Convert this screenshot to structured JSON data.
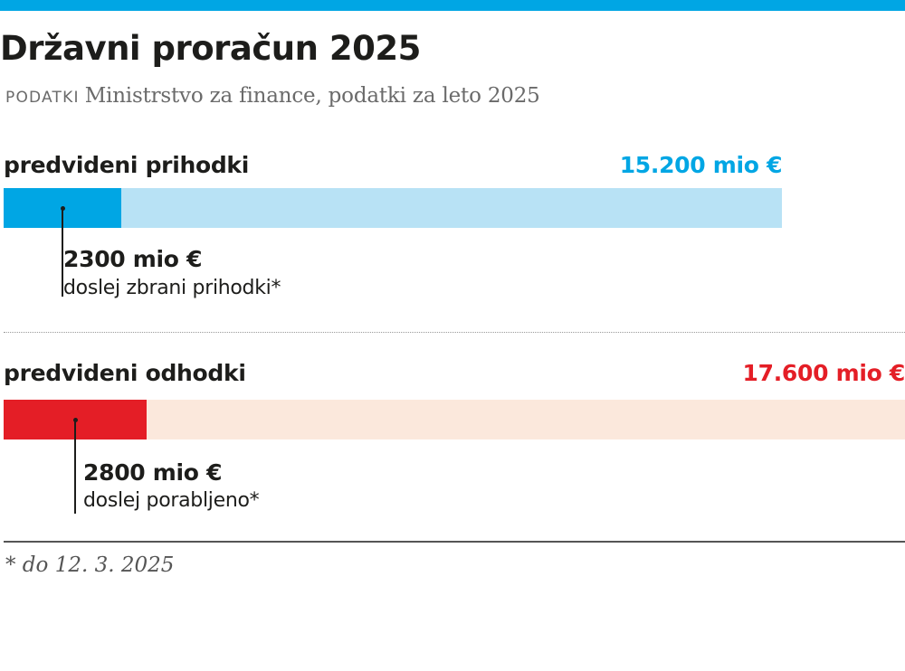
{
  "header": {
    "title": "Državni proračun 2025",
    "source_label": "PODATKI",
    "source_text": "Ministrstvo za finance, podatki za leto 2025"
  },
  "colors": {
    "accent_bar": "#00a6e4",
    "revenue_fill": "#00a6e4",
    "revenue_track": "#b8e2f5",
    "expense_fill": "#e41e26",
    "expense_track": "#fbe8dc",
    "revenue_total_text": "#00a6e4",
    "expense_total_text": "#e41e26"
  },
  "chart_data": {
    "type": "bar",
    "unit": "mio €",
    "max_value": 17600,
    "rows": [
      {
        "label": "predvideni prihodki",
        "total": 15200,
        "total_label": "15.200 mio €",
        "collected": 2300,
        "collected_label": "2300 mio €",
        "collected_desc": "doslej zbrani prihodki*"
      },
      {
        "label": "predvideni odhodki",
        "total": 17600,
        "total_label": "17.600 mio €",
        "collected": 2800,
        "collected_label": "2800 mio €",
        "collected_desc": "doslej porabljeno*"
      }
    ]
  },
  "footnote": "* do 12. 3. 2025"
}
